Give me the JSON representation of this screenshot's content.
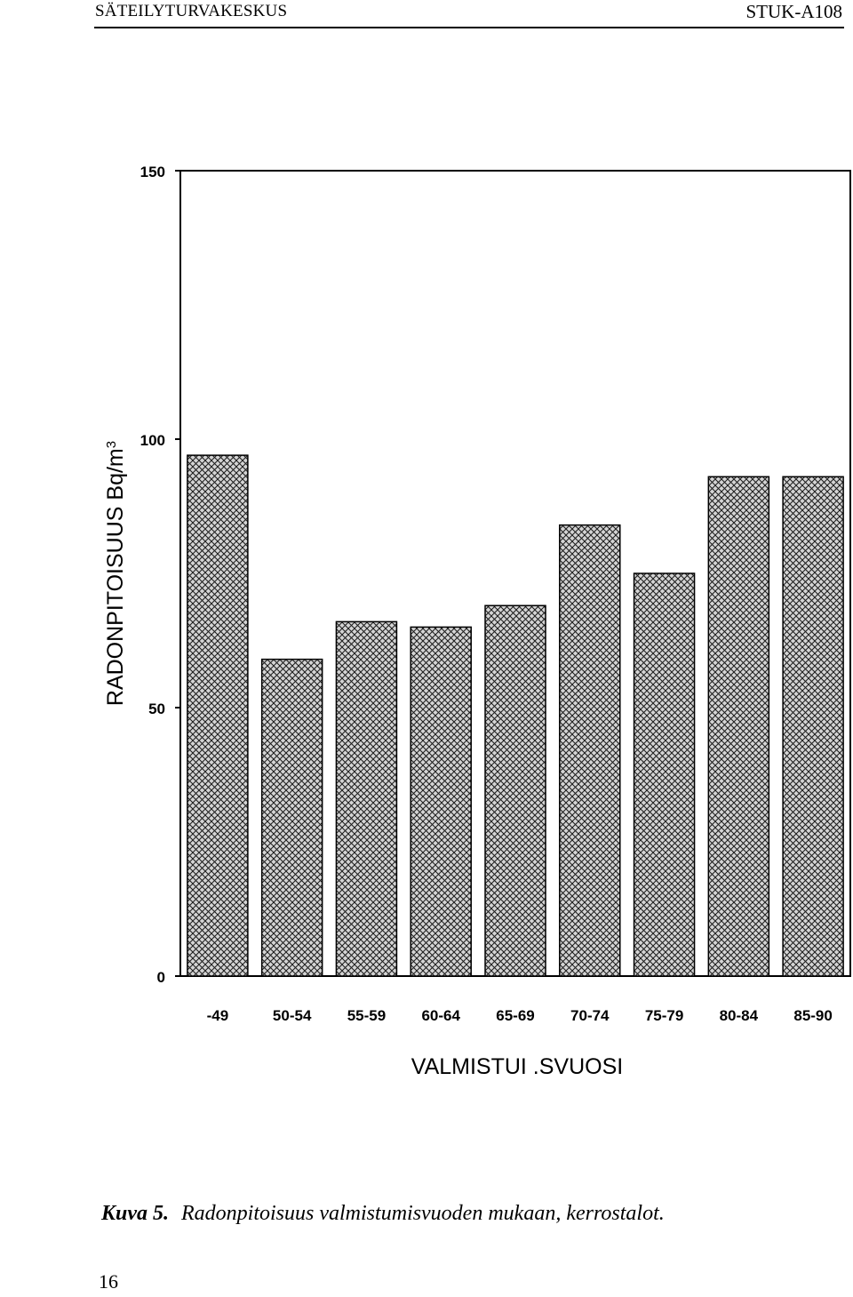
{
  "header": {
    "left": "SÄTEILYTURVAKESKUS",
    "right": "STUK-A108"
  },
  "chart_data": {
    "type": "bar",
    "categories": [
      "-49",
      "50-54",
      "55-59",
      "60-64",
      "65-69",
      "70-74",
      "75-79",
      "80-84",
      "85-90"
    ],
    "values": [
      97,
      59,
      66,
      65,
      69,
      84,
      75,
      93,
      93
    ],
    "xlabel": "VALMISTUI .SVUOSI",
    "ylabel": "RADONPITOISUUS Bq/m",
    "ylabel_superscript": "3",
    "ylim": [
      0,
      150
    ],
    "yticks": [
      0,
      50,
      100,
      150
    ],
    "grid": false,
    "colors": {
      "bar_fill": "#cfcfcf",
      "bar_hatch": "#1a1a1a",
      "axis": "#000000"
    }
  },
  "caption": {
    "label": "Kuva 5.",
    "text": "Radonpitoisuus valmistumisvuoden mukaan, kerrostalot."
  },
  "page_number": "16"
}
